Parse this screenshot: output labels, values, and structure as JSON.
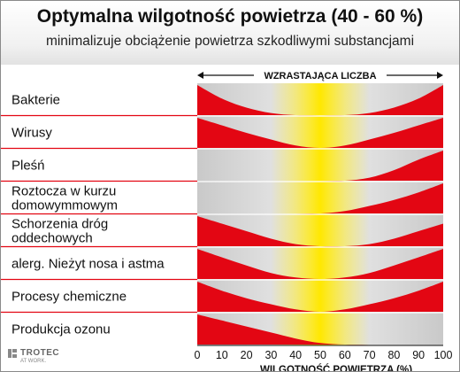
{
  "header": {
    "title": "Optymalna wilgotność powietrza (40 - 60 %)",
    "subtitle": "minimalizuje obciążenie powietrza szkodliwymi substancjami"
  },
  "brand": {
    "name": "TROTEC",
    "tagline": "AT WORK."
  },
  "chart_data": {
    "type": "area",
    "banner": "WZRASTAJĄCA LICZBA",
    "xlabel": "WILGOTNOŚĆ POWIETRZA (%)",
    "xlim": [
      0,
      100
    ],
    "x_ticks": [
      0,
      10,
      20,
      30,
      40,
      50,
      60,
      70,
      80,
      90,
      100
    ],
    "tick_labels": [
      "0",
      "10",
      "20",
      "30",
      "40",
      "50",
      "60",
      "70",
      "80",
      "90",
      "100"
    ],
    "optimal_range": [
      40,
      60
    ],
    "colors": {
      "risk": "#e30613",
      "optimal": "#ffe800",
      "background": "#d6d6d6",
      "gridline": "#ffffff"
    },
    "x": [
      0,
      10,
      20,
      30,
      40,
      50,
      60,
      70,
      80,
      90,
      100
    ],
    "series": [
      {
        "name": "Bakterie",
        "lines": [
          "Bakterie"
        ],
        "values": [
          1.0,
          0.55,
          0.25,
          0.07,
          0,
          0,
          0,
          0.07,
          0.25,
          0.55,
          1.0
        ]
      },
      {
        "name": "Wirusy",
        "lines": [
          "Wirusy"
        ],
        "values": [
          1.0,
          0.75,
          0.5,
          0.28,
          0.08,
          0,
          0.08,
          0.28,
          0.5,
          0.75,
          1.0
        ]
      },
      {
        "name": "Pleśń",
        "lines": [
          "Pleśń"
        ],
        "values": [
          0,
          0,
          0,
          0,
          0,
          0,
          0,
          0.1,
          0.35,
          0.7,
          1.0
        ]
      },
      {
        "name": "Roztocza w kurzu domowymmowym",
        "lines": [
          "Roztocza w kurzu",
          "domowymmowym"
        ],
        "values": [
          0,
          0,
          0,
          0,
          0,
          0,
          0.08,
          0.25,
          0.45,
          0.7,
          1.0
        ]
      },
      {
        "name": "Schorzenia dróg oddechowych",
        "lines": [
          "Schorzenia dróg",
          "oddechowych"
        ],
        "values": [
          1.0,
          0.75,
          0.5,
          0.25,
          0.07,
          0,
          0,
          0.07,
          0.25,
          0.5,
          0.75
        ]
      },
      {
        "name": "alerg. Nieżyt nosa i astma",
        "lines": [
          "alerg. Nieżyt nosa i astma"
        ],
        "values": [
          1.0,
          0.72,
          0.45,
          0.2,
          0.05,
          0,
          0.05,
          0.2,
          0.45,
          0.72,
          1.0
        ]
      },
      {
        "name": "Procesy chemiczne",
        "lines": [
          "Procesy chemiczne"
        ],
        "values": [
          1.0,
          0.7,
          0.45,
          0.25,
          0.08,
          0,
          0.08,
          0.25,
          0.45,
          0.7,
          1.0
        ]
      },
      {
        "name": "Produkcja ozonu",
        "lines": [
          "Produkcja ozonu"
        ],
        "values": [
          1.0,
          0.8,
          0.6,
          0.4,
          0.2,
          0.05,
          0,
          0,
          0,
          0,
          0
        ]
      }
    ]
  }
}
